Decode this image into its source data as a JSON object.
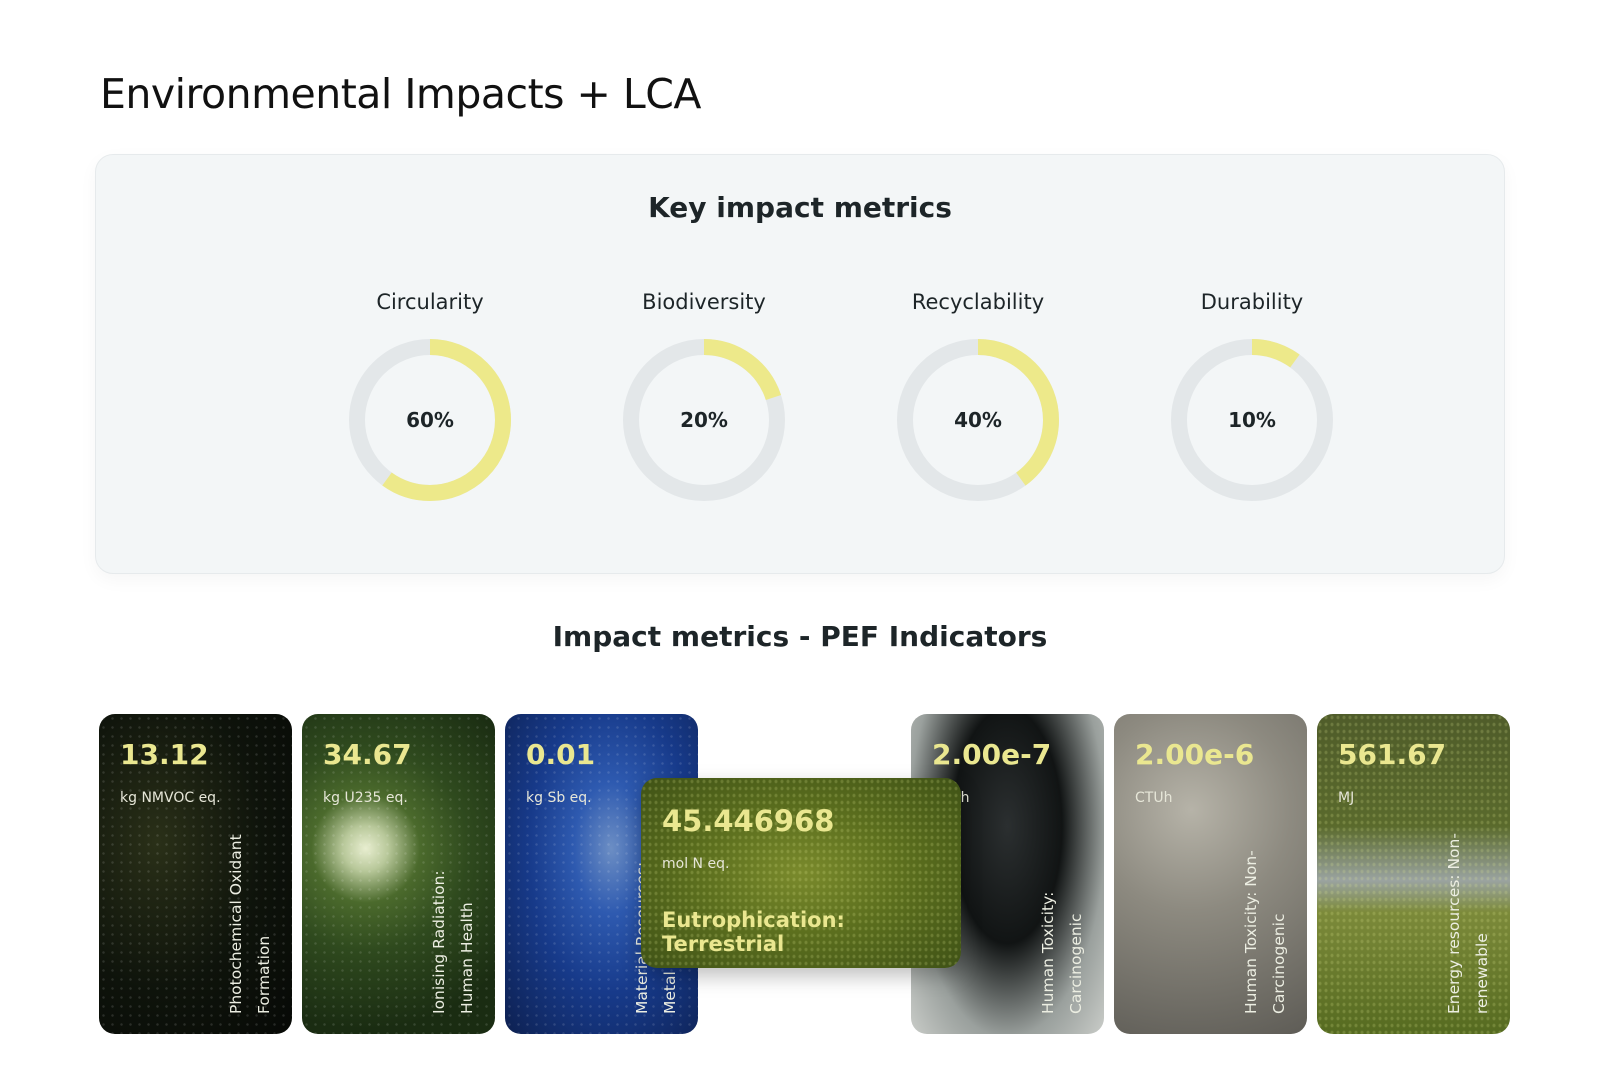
{
  "page": {
    "title": "Environmental Impacts + LCA"
  },
  "key_metrics": {
    "title": "Key impact metrics",
    "accent_color": "#ede98a",
    "track_color": "#e3e7e9",
    "items": [
      {
        "label": "Circularity",
        "value": 60,
        "display": "60%"
      },
      {
        "label": "Biodiversity",
        "value": 20,
        "display": "20%"
      },
      {
        "label": "Recyclability",
        "value": 40,
        "display": "40%"
      },
      {
        "label": "Durability",
        "value": 10,
        "display": "10%"
      }
    ]
  },
  "pef": {
    "title": "Impact metrics - PEF Indicators",
    "cards": [
      {
        "value": "13.12",
        "unit": "kg NMVOC eq.",
        "name": "Photochemical Oxidant Formation"
      },
      {
        "value": "34.67",
        "unit": "kg U235 eq.",
        "name": "Ionising Radiation: Human Health"
      },
      {
        "value": "0.01",
        "unit": "kg Sb eq.",
        "name": "Material Resources: Metal"
      },
      {
        "value": "2.00e-7",
        "unit": "CTUh",
        "name": "Human Toxicity: Carcinogenic"
      },
      {
        "value": "2.00e-6",
        "unit": "CTUh",
        "name": "Human Toxicity: Non-Carcinogenic"
      },
      {
        "value": "561.67",
        "unit": "MJ",
        "name": "Energy resources: Non-renewable"
      }
    ],
    "focused_card": {
      "value": "45.446968",
      "unit": "mol N eq.",
      "name": "Eutrophication: Terrestrial"
    }
  }
}
